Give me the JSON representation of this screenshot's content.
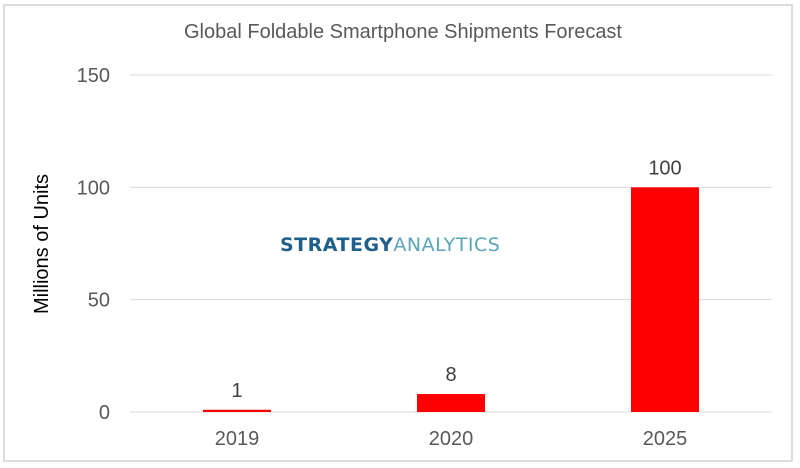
{
  "chart_data": {
    "type": "bar",
    "title": "Global Foldable Smartphone Shipments Forecast",
    "xlabel": "",
    "ylabel": "Millions of Units",
    "categories": [
      "2019",
      "2020",
      "2025"
    ],
    "values": [
      1,
      8,
      100
    ],
    "data_labels": [
      "1",
      "8",
      "100"
    ],
    "ylim": [
      0,
      150
    ],
    "yticks": [
      0,
      50,
      100,
      150
    ],
    "ytick_labels": [
      "0",
      "50",
      "100",
      "150"
    ],
    "grid": true,
    "legend": "none",
    "bar_color": "#ff0000",
    "watermark": {
      "part1": "STRATEGY",
      "part2": "ANALYTICS",
      "color1": "#1f5f8b",
      "color2": "#5aa5b8"
    }
  }
}
